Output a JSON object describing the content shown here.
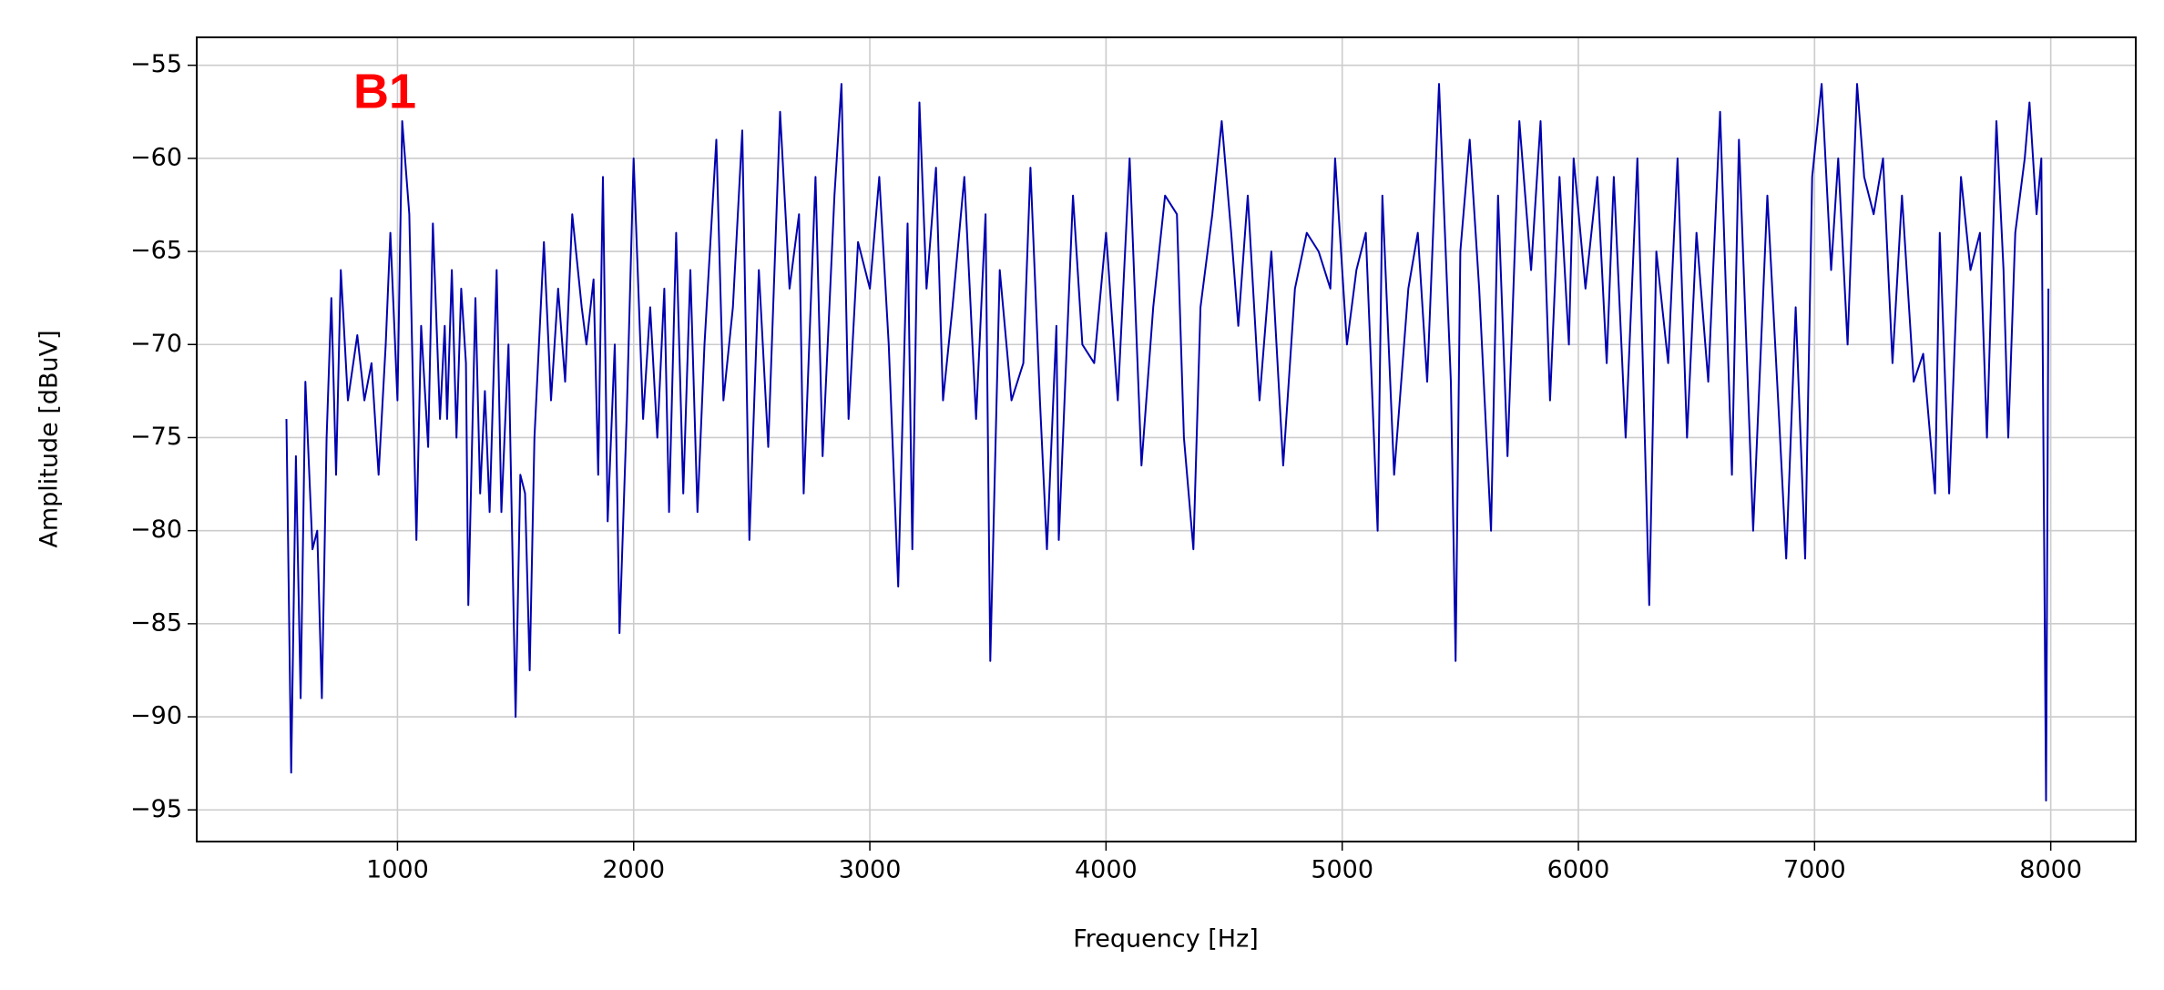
{
  "chart_data": {
    "type": "line",
    "annotation": "B1",
    "xlabel": "Frequency [Hz]",
    "ylabel": "Amplitude [dBuV]",
    "xlim": [
      150,
      8360
    ],
    "ylim": [
      -96.7,
      -53.5
    ],
    "xticks": [
      1000,
      2000,
      3000,
      4000,
      5000,
      6000,
      7000,
      8000
    ],
    "yticks": [
      -95,
      -90,
      -85,
      -80,
      -75,
      -70,
      -65,
      -60,
      -55
    ],
    "grid": true,
    "series": [
      {
        "color": "#0000b0",
        "x": [
          530,
          550,
          570,
          590,
          610,
          640,
          660,
          680,
          700,
          720,
          740,
          760,
          790,
          830,
          860,
          890,
          920,
          950,
          970,
          1000,
          1020,
          1050,
          1070,
          1080,
          1100,
          1130,
          1150,
          1180,
          1200,
          1210,
          1230,
          1250,
          1270,
          1290,
          1300,
          1330,
          1350,
          1370,
          1390,
          1420,
          1440,
          1470,
          1500,
          1520,
          1540,
          1560,
          1580,
          1620,
          1650,
          1680,
          1710,
          1740,
          1780,
          1800,
          1830,
          1850,
          1870,
          1890,
          1920,
          1940,
          1970,
          2000,
          2040,
          2070,
          2100,
          2130,
          2150,
          2180,
          2210,
          2240,
          2270,
          2300,
          2350,
          2380,
          2420,
          2460,
          2490,
          2530,
          2570,
          2620,
          2660,
          2700,
          2720,
          2770,
          2800,
          2850,
          2880,
          2910,
          2950,
          3000,
          3040,
          3080,
          3120,
          3160,
          3180,
          3210,
          3240,
          3280,
          3310,
          3350,
          3400,
          3450,
          3490,
          3510,
          3550,
          3600,
          3650,
          3680,
          3720,
          3750,
          3790,
          3800,
          3860,
          3900,
          3950,
          4000,
          4050,
          4100,
          4150,
          4200,
          4250,
          4300,
          4330,
          4370,
          4400,
          4450,
          4490,
          4530,
          4560,
          4600,
          4650,
          4700,
          4750,
          4800,
          4850,
          4900,
          4950,
          4970,
          5020,
          5060,
          5100,
          5150,
          5170,
          5220,
          5280,
          5320,
          5360,
          5410,
          5460,
          5480,
          5500,
          5540,
          5580,
          5630,
          5660,
          5700,
          5750,
          5800,
          5840,
          5880,
          5920,
          5960,
          5980,
          6030,
          6080,
          6120,
          6150,
          6200,
          6250,
          6300,
          6330,
          6380,
          6420,
          6460,
          6500,
          6550,
          6600,
          6650,
          6680,
          6740,
          6760,
          6800,
          6850,
          6880,
          6920,
          6960,
          6990,
          7030,
          7070,
          7100,
          7140,
          7180,
          7210,
          7250,
          7290,
          7330,
          7370,
          7420,
          7460,
          7510,
          7530,
          7570,
          7620,
          7660,
          7700,
          7730,
          7770,
          7800,
          7820,
          7850,
          7890,
          7910,
          7940,
          7960,
          7980,
          7990
        ],
        "values": [
          -74,
          -93,
          -76,
          -89,
          -72,
          -81,
          -80,
          -89,
          -75,
          -67.5,
          -77,
          -66,
          -73,
          -69.5,
          -73,
          -71,
          -77,
          -70,
          -64,
          -73,
          -58,
          -63,
          -75,
          -80.5,
          -69,
          -75.5,
          -63.5,
          -74,
          -69,
          -74,
          -66,
          -75,
          -67,
          -71,
          -84,
          -67.5,
          -78,
          -72.5,
          -79,
          -66,
          -79,
          -70,
          -90,
          -77,
          -78,
          -87.5,
          -75,
          -64.5,
          -73,
          -67,
          -72,
          -63,
          -68,
          -70,
          -66.5,
          -77,
          -61,
          -79.5,
          -70,
          -85.5,
          -74,
          -60,
          -74,
          -68,
          -75,
          -67,
          -79,
          -64,
          -78,
          -66,
          -79,
          -70,
          -59,
          -73,
          -68,
          -58.5,
          -80.5,
          -66,
          -75.5,
          -57.5,
          -67,
          -63,
          -78,
          -61,
          -76,
          -62,
          -56,
          -74,
          -64.5,
          -67,
          -61,
          -70,
          -83,
          -63.5,
          -81,
          -57,
          -67,
          -60.5,
          -73,
          -68,
          -61,
          -74,
          -63,
          -87,
          -66,
          -73,
          -71,
          -60.5,
          -73,
          -81,
          -69,
          -80.5,
          -62,
          -70,
          -71,
          -64,
          -73,
          -60,
          -76.5,
          -68,
          -62,
          -63,
          -75,
          -81,
          -68,
          -63,
          -58,
          -64,
          -69,
          -62,
          -73,
          -65,
          -76.5,
          -67,
          -64,
          -65,
          -67,
          -60,
          -70,
          -66,
          -64,
          -80,
          -62,
          -77,
          -67,
          -64,
          -72,
          -56,
          -72,
          -87,
          -65,
          -59,
          -67,
          -80,
          -62,
          -76,
          -58,
          -66,
          -58,
          -73,
          -61,
          -70,
          -60,
          -67,
          -61,
          -71,
          -61,
          -75,
          -60,
          -84,
          -65,
          -71,
          -60,
          -75,
          -64,
          -72,
          -57.5,
          -77,
          -59,
          -80,
          -74,
          -62,
          -74,
          -81.5,
          -68,
          -81.5,
          -61,
          -56,
          -66,
          -60,
          -70,
          -56,
          -61,
          -63,
          -60,
          -71,
          -62,
          -72,
          -70.5,
          -78,
          -64,
          -78,
          -61,
          -66,
          -64,
          -75,
          -58,
          -66,
          -75,
          -64,
          -60,
          -57,
          -63,
          -60,
          -94.5,
          -67
        ]
      }
    ]
  }
}
